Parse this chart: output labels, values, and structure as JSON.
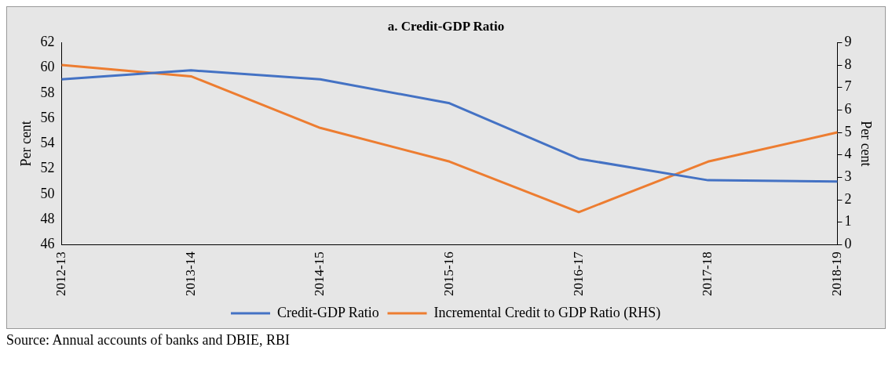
{
  "chart_data": {
    "type": "line",
    "title": "a. Credit-GDP Ratio",
    "ylabel": "Per cent",
    "y2label": "Per cent",
    "categories": [
      "2012-13",
      "2013-14",
      "2014-15",
      "2015-16",
      "2016-17",
      "2017-18",
      "2018-19"
    ],
    "series": [
      {
        "name": "Credit-GDP Ratio",
        "color": "#4472c4",
        "values": [
          59.1,
          59.8,
          59.1,
          57.2,
          52.8,
          51.1,
          51.0
        ]
      },
      {
        "name": "Incremental Credit to GDP Ratio (RHS)",
        "color": "#ed7d31",
        "axis": "y2",
        "values": [
          8.0,
          7.5,
          5.2,
          3.7,
          1.45,
          3.7,
          5.0
        ]
      }
    ],
    "ylim": [
      46,
      62
    ],
    "yticks": [
      46,
      48,
      50,
      52,
      54,
      56,
      58,
      60,
      62
    ],
    "y2lim": [
      0,
      9
    ],
    "y2ticks": [
      0,
      1,
      2,
      3,
      4,
      5,
      6,
      7,
      8,
      9
    ],
    "grid": false,
    "legend": "bottom",
    "marker": "none",
    "line_style": "solid",
    "annotations": [
      "Source: Annual accounts of banks and DBIE, RBI"
    ]
  }
}
